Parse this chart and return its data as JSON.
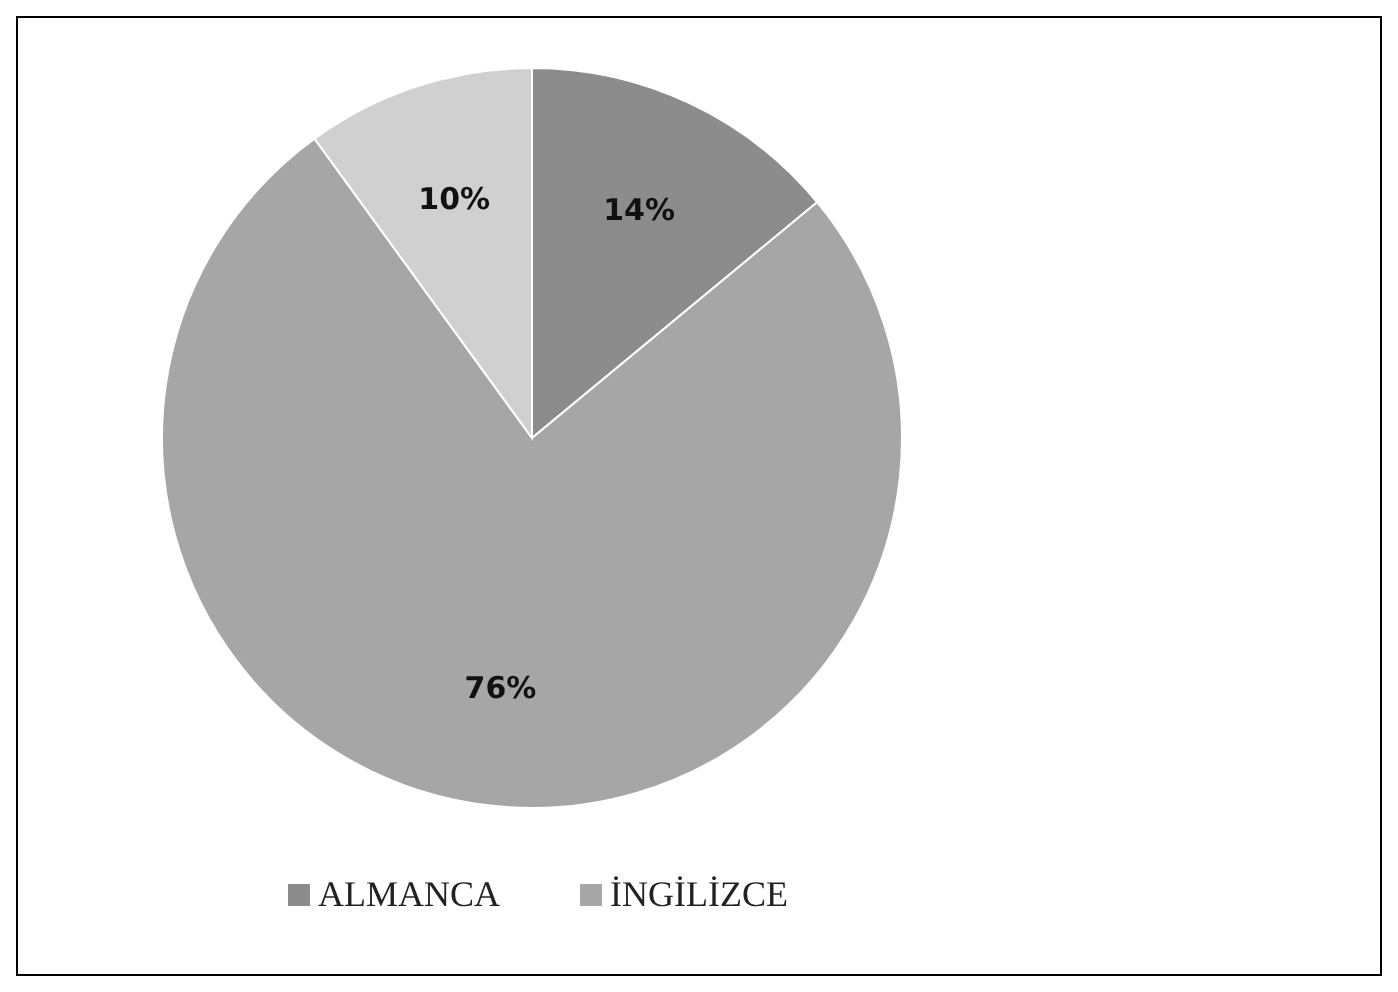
{
  "chart_data": {
    "type": "pie",
    "categories": [
      "ALMANCA",
      "İNGİLİZCE",
      null
    ],
    "values": [
      14,
      76,
      10
    ],
    "colors": [
      "#8c8c8c",
      "#a6a6a6",
      "#d0d0d0"
    ],
    "value_labels": [
      "14%",
      "76%",
      "10%"
    ],
    "legend": "bottom"
  }
}
